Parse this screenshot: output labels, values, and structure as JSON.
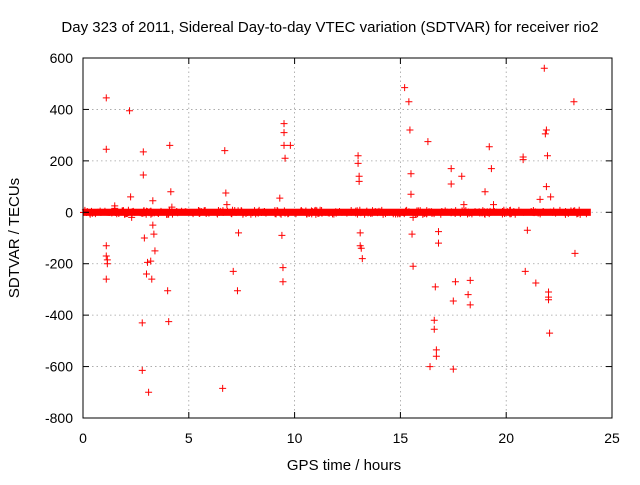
{
  "chart_data": {
    "type": "scatter",
    "title": "Day 323 of 2011, Sidereal Day-to-day VTEC variation (SDTVAR) for receiver rio2",
    "xlabel": "GPS time / hours",
    "ylabel": "SDTVAR / TECUs",
    "xlim": [
      0,
      25
    ],
    "ylim": [
      -800,
      600
    ],
    "xticks": [
      0,
      5,
      10,
      15,
      20,
      25
    ],
    "yticks": [
      -800,
      -600,
      -400,
      -200,
      0,
      200,
      400,
      600
    ],
    "xtick_labels": [
      "0",
      "5",
      "10",
      "15",
      "20",
      "25"
    ],
    "ytick_labels": [
      "-800",
      "-600",
      "-400",
      "-200",
      "0",
      "200",
      "400",
      "600"
    ],
    "grid": true,
    "marker": "+",
    "color": "#ff0000",
    "band": {
      "description": "dense cluster of points near zero across all hours",
      "x_range": [
        0,
        24
      ],
      "y_range": [
        -10,
        10
      ]
    },
    "series": [
      {
        "name": "SDTVAR",
        "x": [
          1.1,
          1.1,
          1.1,
          1.1,
          1.1,
          1.15,
          1.15,
          1.5,
          1.5,
          2.2,
          2.25,
          2.3,
          2.8,
          2.8,
          2.85,
          2.85,
          2.9,
          3.0,
          3.05,
          3.1,
          3.2,
          3.25,
          3.3,
          3.3,
          3.35,
          3.4,
          4.0,
          4.05,
          4.1,
          4.15,
          4.2,
          6.6,
          6.7,
          6.75,
          6.8,
          7.1,
          7.3,
          7.35,
          9.3,
          9.4,
          9.45,
          9.45,
          9.5,
          9.5,
          9.5,
          9.55,
          9.8,
          13.0,
          13.0,
          13.05,
          13.05,
          13.1,
          13.1,
          13.15,
          13.2,
          15.2,
          15.4,
          15.45,
          15.5,
          15.5,
          15.55,
          15.6,
          15.6,
          16.3,
          16.4,
          16.6,
          16.6,
          16.65,
          16.7,
          16.7,
          16.8,
          16.8,
          17.4,
          17.4,
          17.5,
          17.5,
          17.6,
          17.9,
          18.0,
          18.2,
          18.3,
          18.3,
          19.0,
          19.2,
          19.3,
          19.4,
          20.8,
          20.8,
          20.9,
          21.0,
          21.4,
          21.6,
          21.8,
          21.85,
          21.9,
          21.9,
          21.95,
          22.0,
          22.0,
          22.0,
          22.05,
          22.1,
          23.2,
          23.25
        ],
        "y": [
          445,
          245,
          -130,
          -170,
          -260,
          -185,
          -200,
          25,
          15,
          395,
          60,
          -20,
          -430,
          -615,
          235,
          145,
          -100,
          -240,
          -195,
          -700,
          -190,
          -260,
          45,
          -50,
          -85,
          -150,
          -305,
          -425,
          260,
          80,
          20,
          -685,
          240,
          75,
          30,
          -230,
          -305,
          -80,
          55,
          -90,
          -215,
          -270,
          345,
          310,
          260,
          210,
          260,
          220,
          190,
          140,
          120,
          -80,
          -130,
          -140,
          -180,
          485,
          430,
          320,
          150,
          70,
          -85,
          -210,
          -20,
          275,
          -600,
          -420,
          -455,
          -290,
          -535,
          -560,
          -120,
          -75,
          170,
          110,
          -610,
          -345,
          -270,
          140,
          30,
          -320,
          -360,
          -265,
          80,
          255,
          170,
          30,
          215,
          205,
          -230,
          -70,
          -275,
          50,
          560,
          305,
          320,
          100,
          220,
          -310,
          -340,
          -330,
          -470,
          60,
          430,
          -160
        ]
      }
    ]
  }
}
